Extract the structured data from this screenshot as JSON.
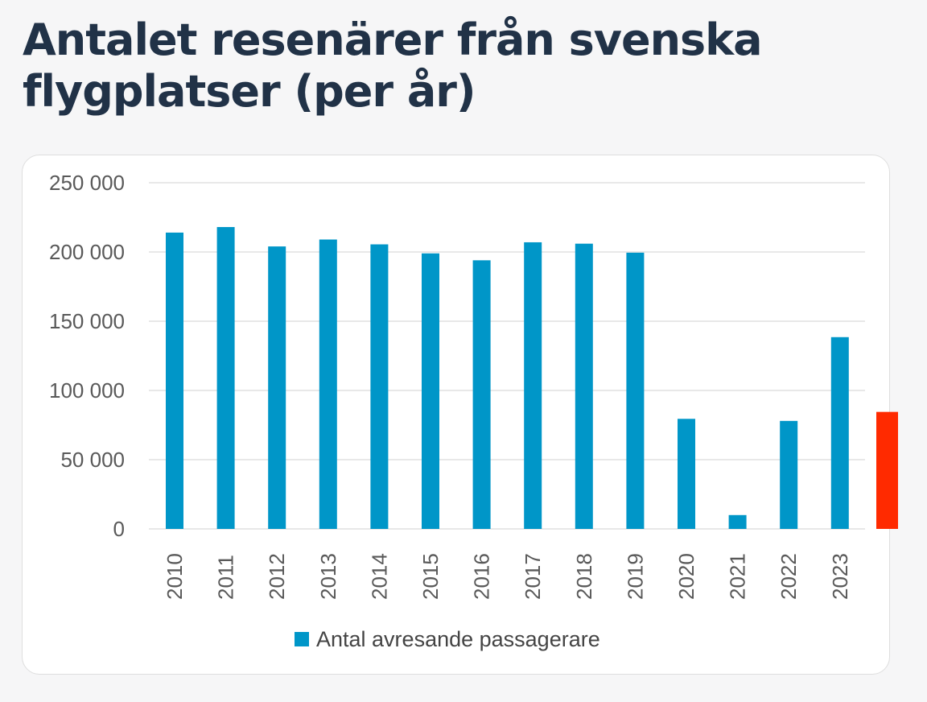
{
  "page": {
    "title": "Antalet resenärer från svenska flygplatser (per år)"
  },
  "colors": {
    "bar": "#0096c8",
    "highlight": "#ff2a00",
    "grid": "#d9d9d9",
    "axis_text": "#595959",
    "title": "#213247"
  },
  "chart_data": {
    "type": "bar",
    "title": "Antalet resenärer från svenska flygplatser (per år)",
    "xlabel": "",
    "ylabel": "",
    "categories": [
      "2010",
      "2011",
      "2012",
      "2013",
      "2014",
      "2015",
      "2016",
      "2017",
      "2018",
      "2019",
      "2020",
      "2021",
      "2022",
      "2023"
    ],
    "series": [
      {
        "name": "Antal avresande passagerare",
        "values": [
          214000,
          218000,
          204000,
          209000,
          205500,
          199000,
          194000,
          207000,
          206000,
          199500,
          79500,
          10000,
          78000,
          138500
        ]
      }
    ],
    "highlight_marker": {
      "value": 84500
    },
    "ylim": [
      0,
      250000
    ],
    "yticks": [
      0,
      50000,
      100000,
      150000,
      200000,
      250000
    ],
    "ytick_labels": [
      "0",
      "50 000",
      "100 000",
      "150 000",
      "200 000",
      "250 000"
    ],
    "grid": true,
    "legend_position": "bottom"
  }
}
